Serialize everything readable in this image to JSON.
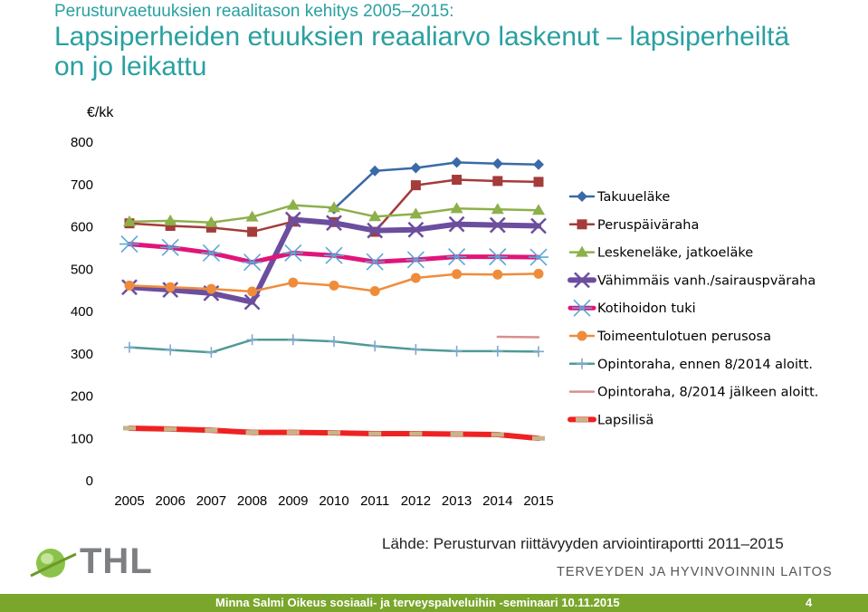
{
  "header": {
    "kicker": "Perusturvaetuuksien reaalitason kehitys 2005–2015:",
    "title": "Lapsiperheiden etuuksien reaaliarvo laskenut – lapsiperheiltä on jo leikattu"
  },
  "chart_data": {
    "type": "line",
    "ylabel": "€/kk",
    "ylim": [
      0,
      800
    ],
    "yticks": [
      0,
      100,
      200,
      300,
      400,
      500,
      600,
      700,
      800
    ],
    "x": [
      "2005",
      "2006",
      "2007",
      "2008",
      "2009",
      "2010",
      "2011",
      "2012",
      "2013",
      "2014",
      "2015"
    ],
    "legend_position": "right",
    "series": [
      {
        "name": "Takuueläke",
        "color": "#3a6aa8",
        "marker": "diamond",
        "width": 2.5,
        "values": [
          null,
          null,
          null,
          null,
          null,
          640,
          730,
          737,
          750,
          747,
          745
        ]
      },
      {
        "name": "Peruspäiväraha",
        "color": "#a33c3a",
        "marker": "square",
        "width": 2.5,
        "values": [
          606,
          600,
          596,
          586,
          610,
          609,
          586,
          696,
          709,
          706,
          704
        ]
      },
      {
        "name": "Leskeneläke, jatkoeläke",
        "color": "#8db04a",
        "marker": "triangle",
        "width": 2.5,
        "values": [
          610,
          612,
          608,
          621,
          649,
          643,
          622,
          628,
          641,
          639,
          637
        ]
      },
      {
        "name": "Vähimmäis vanh./sairauspväraha",
        "color": "#6b4e9e",
        "marker": "cross",
        "width": 6,
        "values": [
          455,
          449,
          441,
          420,
          615,
          607,
          589,
          591,
          604,
          602,
          600
        ]
      },
      {
        "name": "Kotihoidon tuki",
        "color": "#e0157a",
        "marker": "star",
        "width": 5,
        "values": [
          557,
          549,
          536,
          514,
          536,
          530,
          515,
          520,
          527,
          527,
          526
        ]
      },
      {
        "name": "Toimeentulotuen perusosa",
        "color": "#ef8c3c",
        "marker": "circle",
        "width": 2.5,
        "values": [
          459,
          455,
          451,
          445,
          466,
          459,
          446,
          477,
          486,
          485,
          487
        ]
      },
      {
        "name": "Opintoraha, ennen 8/2014 aloitt.",
        "color": "#4f9a95",
        "marker": "plus",
        "width": 2.5,
        "values": [
          313,
          307,
          301,
          331,
          331,
          327,
          316,
          308,
          304,
          304,
          303
        ]
      },
      {
        "name": "Opintoraha, 8/2014 jälkeen aloitt.",
        "color": "#d88f8f",
        "marker": "none",
        "width": 2.5,
        "values": [
          null,
          null,
          null,
          null,
          null,
          null,
          null,
          null,
          null,
          338,
          337
        ]
      },
      {
        "name": "Lapsilisä",
        "color": "#ee2222",
        "marker": "dash",
        "width": 6,
        "values": [
          122,
          120,
          117,
          112,
          112,
          111,
          109,
          109,
          108,
          107,
          98
        ]
      }
    ]
  },
  "source": "Lähde: Perusturvan riittävyyden arviointiraportti 2011–2015",
  "branding": {
    "logo": "THL",
    "org": "TERVEYDEN JA HYVINVOINNIN LAITOS"
  },
  "footer": {
    "text": "Minna Salmi  Oikeus sosiaali- ja terveyspalveluihin -seminaari 10.11.2015",
    "page": "4"
  }
}
